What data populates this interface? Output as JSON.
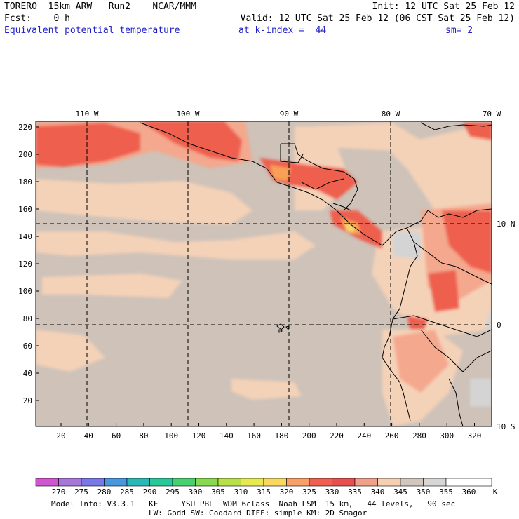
{
  "header": {
    "line1_left": "TORERO  15km ARW   Run2    NCAR/MMM",
    "line1_right": "Init: 12 UTC Sat 25 Feb 12",
    "line2_left": "Fcst:    0 h",
    "line2_right": "Valid: 12 UTC Sat 25 Feb 12 (06 CST Sat 25 Feb 12)",
    "field": "Equivalent potential temperature",
    "level": "at k-index =  44",
    "smooth": "sm= 2"
  },
  "axes": {
    "top_lon": [
      "110 W",
      "100 W",
      "90 W",
      "80 W",
      "70 W"
    ],
    "right_lat": [
      "10 N",
      "0",
      "10 S"
    ],
    "x_ticks": [
      "20",
      "40",
      "60",
      "80",
      "100",
      "120",
      "140",
      "160",
      "180",
      "200",
      "220",
      "240",
      "260",
      "280",
      "300",
      "320"
    ],
    "y_ticks": [
      "220",
      "200",
      "180",
      "160",
      "140",
      "120",
      "100",
      "80",
      "60",
      "40",
      "20"
    ]
  },
  "colorbar": {
    "labels": [
      "270",
      "275",
      "280",
      "285",
      "290",
      "295",
      "300",
      "305",
      "310",
      "315",
      "320",
      "325",
      "330",
      "335",
      "340",
      "345",
      "350",
      "355",
      "360"
    ],
    "unit": "K",
    "colors": [
      "#d055d0",
      "#a878d8",
      "#7878e8",
      "#4898e0",
      "#28b8b8",
      "#28c898",
      "#48d070",
      "#88d850",
      "#b8e048",
      "#e8e850",
      "#f8d860",
      "#f8a068",
      "#f06050",
      "#e85050",
      "#f0a088",
      "#f4cfb4",
      "#d2c6bd",
      "#d6d6d6",
      "#ffffff",
      "#ffffff"
    ]
  },
  "footer": {
    "line1": "Model Info: V3.3.1   KF     YSU PBL  WDM 6class  Noah LSM  15 km,   44 levels,   90 sec",
    "line2": "LW: Godd SW: Goddard DIFF: simple KM: 2D Smagor"
  },
  "map_colors": {
    "background": "#cec2b9",
    "warm_light": "#f4d2b8",
    "salmon": "#f4a88e",
    "red": "#ee5e4e",
    "orange": "#f8a058",
    "yellow": "#f8d870",
    "grey": "#d4d4d4",
    "coast": "#000000"
  }
}
